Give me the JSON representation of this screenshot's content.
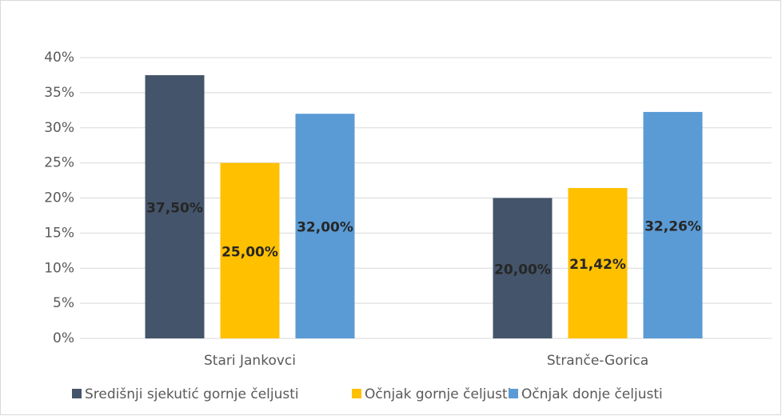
{
  "chart_data": {
    "type": "bar",
    "categories": [
      "Stari Jankovci",
      "Stranče-Gorica"
    ],
    "series": [
      {
        "name": "Središnji sjekutić gornje čeljusti",
        "color": "#44546a",
        "values": [
          37.5,
          20
        ],
        "value_labels": [
          "37,50%",
          "20,00%"
        ]
      },
      {
        "name": "Očnjak gornje čeljusti",
        "color": "#ffc000",
        "values": [
          25,
          21.42
        ],
        "value_labels": [
          "25,00%",
          "21,42%"
        ]
      },
      {
        "name": "Očnjak donje čeljusti",
        "color": "#5b9bd5",
        "values": [
          32,
          32.26
        ],
        "value_labels": [
          "32,00%",
          "32,26%"
        ]
      }
    ],
    "ylim": [
      0,
      40
    ],
    "yticks": [
      {
        "value": 0,
        "label": "0%"
      },
      {
        "value": 5,
        "label": "5%"
      },
      {
        "value": 10,
        "label": "10%"
      },
      {
        "value": 15,
        "label": "15%"
      },
      {
        "value": 20,
        "label": "20%"
      },
      {
        "value": 25,
        "label": "25%"
      },
      {
        "value": 30,
        "label": "30%"
      },
      {
        "value": 35,
        "label": "35%"
      },
      {
        "value": 40,
        "label": "40%"
      }
    ],
    "grid": true,
    "legend": "bottom"
  }
}
